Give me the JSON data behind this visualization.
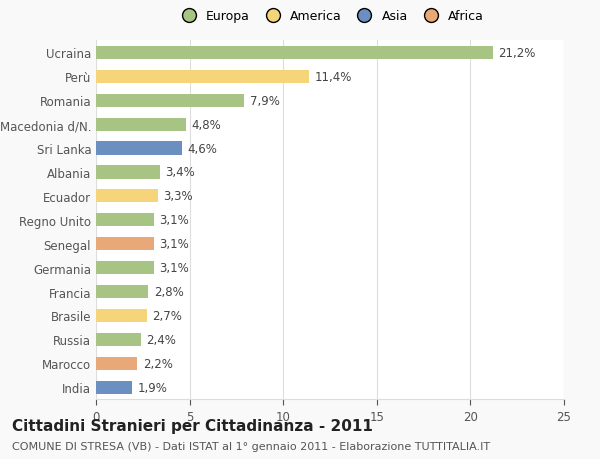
{
  "categories": [
    "Ucraina",
    "Perù",
    "Romania",
    "Macedonia d/N.",
    "Sri Lanka",
    "Albania",
    "Ecuador",
    "Regno Unito",
    "Senegal",
    "Germania",
    "Francia",
    "Brasile",
    "Russia",
    "Marocco",
    "India"
  ],
  "values": [
    21.2,
    11.4,
    7.9,
    4.8,
    4.6,
    3.4,
    3.3,
    3.1,
    3.1,
    3.1,
    2.8,
    2.7,
    2.4,
    2.2,
    1.9
  ],
  "labels": [
    "21,2%",
    "11,4%",
    "7,9%",
    "4,8%",
    "4,6%",
    "3,4%",
    "3,3%",
    "3,1%",
    "3,1%",
    "3,1%",
    "2,8%",
    "2,7%",
    "2,4%",
    "2,2%",
    "1,9%"
  ],
  "colors": [
    "#a8c484",
    "#f5d47a",
    "#a8c484",
    "#a8c484",
    "#6a8fc0",
    "#a8c484",
    "#f5d47a",
    "#a8c484",
    "#e8a878",
    "#a8c484",
    "#a8c484",
    "#f5d47a",
    "#a8c484",
    "#e8a878",
    "#6a8fc0"
  ],
  "legend": [
    {
      "label": "Europa",
      "color": "#a8c484"
    },
    {
      "label": "America",
      "color": "#f5d47a"
    },
    {
      "label": "Asia",
      "color": "#6a8fc0"
    },
    {
      "label": "Africa",
      "color": "#e8a878"
    }
  ],
  "title": "Cittadini Stranieri per Cittadinanza - 2011",
  "subtitle": "COMUNE DI STRESA (VB) - Dati ISTAT al 1° gennaio 2011 - Elaborazione TUTTITALIA.IT",
  "xlim": [
    0,
    25
  ],
  "xticks": [
    0,
    5,
    10,
    15,
    20,
    25
  ],
  "background_color": "#f9f9f9",
  "bar_background": "#ffffff",
  "grid_color": "#dddddd",
  "label_fontsize": 8.5,
  "ytick_fontsize": 8.5,
  "xtick_fontsize": 8.5,
  "title_fontsize": 11,
  "subtitle_fontsize": 8,
  "bar_height": 0.55
}
